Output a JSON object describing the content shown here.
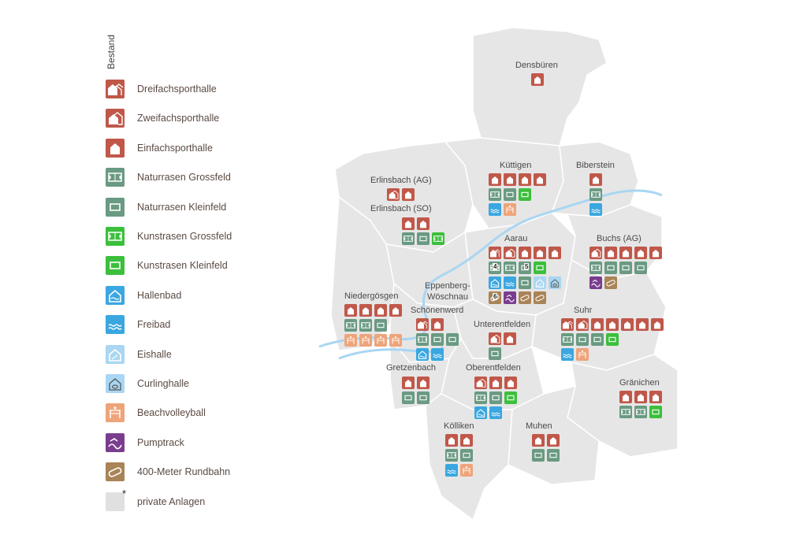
{
  "legend": {
    "title": "Bestand",
    "items": [
      {
        "key": "dreifach",
        "label": "Dreifachsporthalle",
        "color": "#c0584a",
        "icon": "triple-hall-icon"
      },
      {
        "key": "zweifach",
        "label": "Zweifachsporthalle",
        "color": "#c0584a",
        "icon": "double-hall-icon"
      },
      {
        "key": "einfach",
        "label": "Einfachsporthalle",
        "color": "#c0584a",
        "icon": "single-hall-icon"
      },
      {
        "key": "nrg",
        "label": "Naturrasen Grossfeld",
        "color": "#6a9a82",
        "icon": "large-field-icon"
      },
      {
        "key": "nrk",
        "label": "Naturrasen Kleinfeld",
        "color": "#6a9a82",
        "icon": "small-field-icon"
      },
      {
        "key": "krg",
        "label": "Kunstrasen Grossfeld",
        "color": "#3cbf3c",
        "icon": "large-field-icon"
      },
      {
        "key": "krk",
        "label": "Kunstrasen Kleinfeld",
        "color": "#3cbf3c",
        "icon": "small-field-icon"
      },
      {
        "key": "hallenbad",
        "label": "Hallenbad",
        "color": "#3aa7e0",
        "icon": "indoor-pool-icon"
      },
      {
        "key": "freibad",
        "label": "Freibad",
        "color": "#3aa7e0",
        "icon": "outdoor-pool-icon"
      },
      {
        "key": "eishalle",
        "label": "Eishalle",
        "color": "#a9d6f2",
        "icon": "ice-hall-icon"
      },
      {
        "key": "curling",
        "label": "Curlinghalle",
        "color": "#a9d6f2",
        "icon": "curling-hall-icon"
      },
      {
        "key": "beach",
        "label": "Beachvolleyball",
        "color": "#eea47a",
        "icon": "beach-volleyball-icon"
      },
      {
        "key": "pump",
        "label": "Pumptrack",
        "color": "#7a3d8e",
        "icon": "pumptrack-icon"
      },
      {
        "key": "track",
        "label": "400-Meter Rundbahn",
        "color": "#a98457",
        "icon": "running-track-icon"
      },
      {
        "key": "private",
        "label": "private Anlagen",
        "color": "#e0e0e0",
        "icon": "asterisk-icon"
      }
    ]
  },
  "places": {
    "densbueren": "Densbüren",
    "erlinsbach_ag": "Erlinsbach (AG)",
    "erlinsbach_so": "Erlinsbach (SO)",
    "kuettigen": "Küttigen",
    "biberstein": "Biberstein",
    "aarau": "Aarau",
    "buchs": "Buchs (AG)",
    "eppenberg": "Eppenberg-",
    "woeschnau": "Wöschnau",
    "niedergoesgen": "Niedergösgen",
    "schoenenwerd": "Schönenwerd",
    "unterentfelden": "Unterentfelden",
    "suhr": "Suhr",
    "gretzenbach": "Gretzenbach",
    "oberentfelden": "Oberentfelden",
    "graenichen": "Gränichen",
    "koelliken": "Kölliken",
    "muhen": "Muhen"
  },
  "facilities": {
    "densbueren": [
      [
        "einfach"
      ]
    ],
    "erlinsbach_ag": [
      [
        "zweifach",
        "einfach"
      ]
    ],
    "erlinsbach_so": [
      [
        "einfach",
        "einfach"
      ],
      [
        "nrg",
        "nrk",
        "krg"
      ]
    ],
    "kuettigen": [
      [
        "einfach",
        "einfach",
        "einfach",
        "einfach"
      ],
      [
        "nrg",
        "nrk",
        "krk"
      ],
      [
        "freibad",
        "beach"
      ]
    ],
    "biberstein": [
      [
        "einfach"
      ],
      [
        "nrg"
      ],
      [
        "freibad"
      ]
    ],
    "aarau": [
      [
        "dreifach",
        "zweifach",
        "einfach",
        "einfach",
        "einfach"
      ],
      [
        "nrg",
        "nrg",
        "nrk",
        "krk"
      ],
      [
        "hallenbad",
        "freibad",
        "nrk",
        "eishalle",
        "curling"
      ],
      [
        "track",
        "pump",
        "track",
        "track"
      ]
    ],
    "buchs": [
      [
        "zweifach",
        "einfach",
        "einfach",
        "einfach",
        "einfach"
      ],
      [
        "nrg",
        "nrk",
        "nrk",
        "nrk"
      ],
      [
        "pump",
        "track"
      ]
    ],
    "niedergoesgen": [
      [
        "einfach",
        "einfach",
        "einfach",
        "einfach"
      ],
      [
        "nrg",
        "nrg",
        "nrk"
      ],
      [
        "beach",
        "beach",
        "beach",
        "beach"
      ]
    ],
    "schoenenwerd": [
      [
        "dreifach",
        "einfach"
      ],
      [
        "nrg",
        "nrk",
        "nrk"
      ],
      [
        "hallenbad",
        "freibad"
      ]
    ],
    "unterentfelden": [
      [
        "zweifach",
        "einfach"
      ],
      [
        "nrk"
      ]
    ],
    "suhr": [
      [
        "dreifach",
        "zweifach",
        "einfach",
        "einfach",
        "einfach",
        "einfach",
        "einfach"
      ],
      [
        "nrg",
        "nrk",
        "nrk",
        "krk"
      ],
      [
        "freibad",
        "beach"
      ]
    ],
    "gretzenbach": [
      [
        "einfach",
        "einfach"
      ],
      [
        "nrk",
        "nrk"
      ]
    ],
    "oberentfelden": [
      [
        "zweifach",
        "einfach",
        "einfach"
      ],
      [
        "nrg",
        "nrk",
        "krk"
      ],
      [
        "hallenbad",
        "freibad"
      ]
    ],
    "graenichen": [
      [
        "einfach",
        "einfach",
        "einfach"
      ],
      [
        "nrg",
        "nrg",
        "krk"
      ]
    ],
    "koelliken": [
      [
        "einfach",
        "einfach"
      ],
      [
        "nrg",
        "nrk"
      ],
      [
        "freibad",
        "beach"
      ]
    ],
    "muhen": [
      [
        "einfach",
        "einfach"
      ],
      [
        "nrk",
        "nrk"
      ]
    ]
  },
  "badges": {
    "aarau_1": "4",
    "aarau_2": "5",
    "aarau_3": "6"
  }
}
